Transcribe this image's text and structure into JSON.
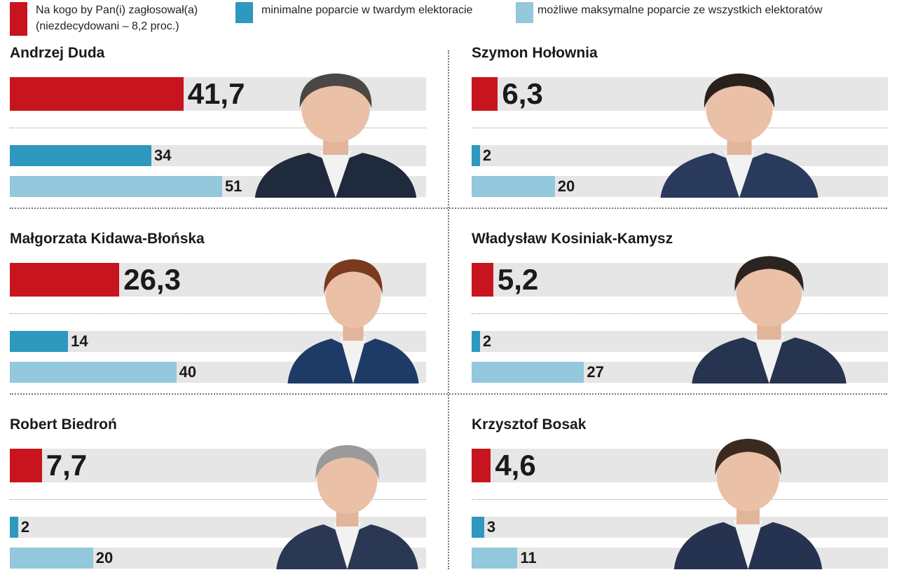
{
  "colors": {
    "vote": "#c8141e",
    "min": "#2e98bf",
    "max": "#93c8dd",
    "track": "#e6e6e6"
  },
  "legend": [
    {
      "label": "Na kogo by Pan(i) zagłosował(a)",
      "label2": "(niezdecydowani – 8,2 proc.)",
      "color": "#c8141e"
    },
    {
      "label": "minimalne poparcie w twardym elektoracie",
      "color": "#2e98bf"
    },
    {
      "label": "możliwe maksymalne poparcie ze wszystkich elektoratów",
      "color": "#93c8dd"
    }
  ],
  "chart_data": {
    "type": "bar",
    "orientation": "horizontal",
    "xlim": [
      0,
      100
    ],
    "series_names": [
      "Na kogo by Pan(i) zagłosował(a)",
      "minimalne poparcie w twardym elektoracie",
      "możliwe maksymalne poparcie ze wszystkich elektoratów"
    ],
    "candidates": [
      {
        "name": "Andrzej Duda",
        "vote": 41.7,
        "vote_label": "41,7",
        "min": 34,
        "min_label": "34",
        "max": 51,
        "max_label": "51"
      },
      {
        "name": "Szymon Hołownia",
        "vote": 6.3,
        "vote_label": "6,3",
        "min": 2,
        "min_label": "2",
        "max": 20,
        "max_label": "20"
      },
      {
        "name": "Małgorzata Kidawa-Błońska",
        "vote": 26.3,
        "vote_label": "26,3",
        "min": 14,
        "min_label": "14",
        "max": 40,
        "max_label": "40"
      },
      {
        "name": "Władysław Kosiniak-Kamysz",
        "vote": 5.2,
        "vote_label": "5,2",
        "min": 2,
        "min_label": "2",
        "max": 27,
        "max_label": "27"
      },
      {
        "name": "Robert Biedroń",
        "vote": 7.7,
        "vote_label": "7,7",
        "min": 2,
        "min_label": "2",
        "max": 20,
        "max_label": "20"
      },
      {
        "name": "Krzysztof Bosak",
        "vote": 4.6,
        "vote_label": "4,6",
        "min": 3,
        "min_label": "3",
        "max": 11,
        "max_label": "11"
      }
    ]
  }
}
